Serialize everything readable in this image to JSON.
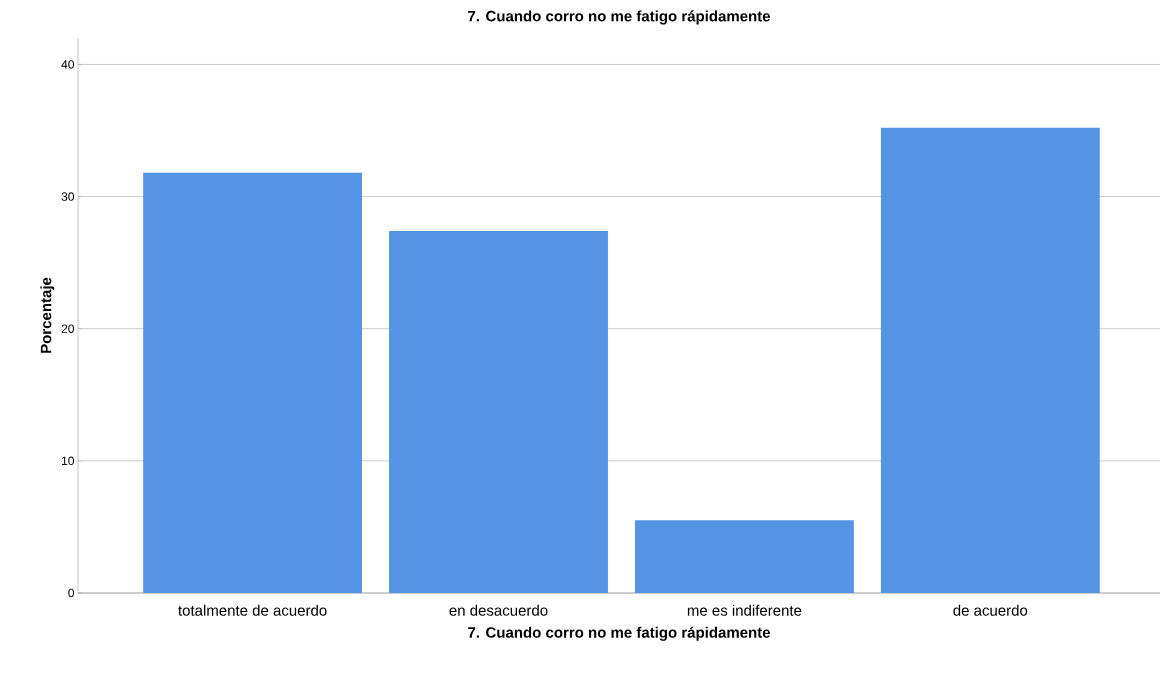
{
  "chart_data": {
    "type": "bar",
    "title": "7. Cuando corro no me fatigo rápidamente",
    "xlabel": "7. Cuando corro no me fatigo rápidamente",
    "ylabel": "Porcentaje",
    "categories": [
      "totalmente de acuerdo",
      "en desacuerdo",
      "me es indiferente",
      "de acuerdo"
    ],
    "values": [
      31.8,
      27.4,
      5.5,
      35.2
    ],
    "color": "#5594e3",
    "ylim": [
      0,
      42
    ],
    "yticks": [
      0,
      10,
      20,
      30,
      40
    ],
    "grid": "y"
  }
}
